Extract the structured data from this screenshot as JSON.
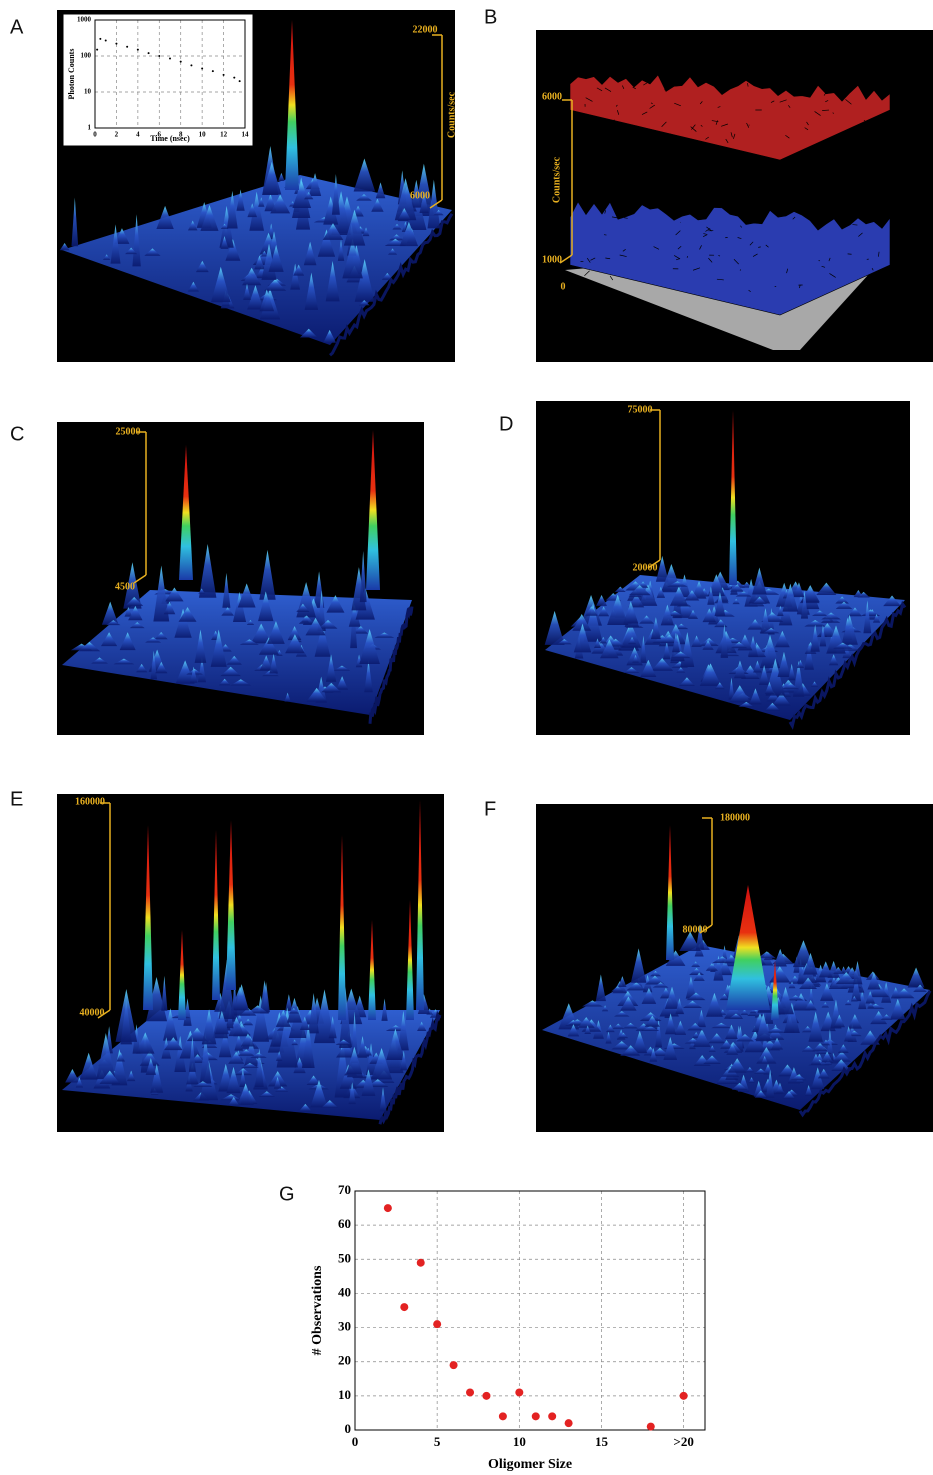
{
  "panels": {
    "A": {
      "label": "A",
      "scale": [
        "22000",
        "Counts/sec",
        "6000"
      ]
    },
    "B": {
      "label": "B",
      "scale": [
        "6000",
        "Counts/sec",
        "1000",
        "0"
      ]
    },
    "C": {
      "label": "C",
      "scale": [
        "25000",
        "4500"
      ]
    },
    "D": {
      "label": "D",
      "scale": [
        "75000",
        "20000"
      ]
    },
    "E": {
      "label": "E",
      "scale": [
        "160000",
        "40000"
      ]
    },
    "F": {
      "label": "F",
      "scale": [
        "180000",
        "80000"
      ]
    },
    "G": {
      "label": "G"
    }
  },
  "chart_data": [
    {
      "type": "scatter",
      "xlabel": "Time (nsec)",
      "ylabel": "Photon Counts",
      "x": [
        0.2,
        0.5,
        1,
        2,
        3,
        4,
        5,
        6,
        7,
        8,
        9,
        10,
        11,
        12,
        13,
        13.5
      ],
      "values": [
        150,
        300,
        270,
        220,
        180,
        150,
        120,
        100,
        85,
        70,
        55,
        45,
        38,
        30,
        25,
        20
      ],
      "color": "#000000",
      "yscale": "log",
      "grid": true,
      "xlim": [
        0,
        14
      ],
      "xticks": [
        0,
        2,
        4,
        6,
        8,
        10,
        12,
        14
      ],
      "ylim": [
        1,
        1000
      ],
      "yticks": [
        1,
        10,
        100,
        1000
      ]
    },
    {
      "type": "scatter",
      "xlabel": "Oligomer Size",
      "ylabel": "# Observations",
      "x": [
        2,
        3,
        4,
        5,
        6,
        7,
        8,
        9,
        10,
        11,
        12,
        13,
        18,
        20
      ],
      "values": [
        65,
        36,
        49,
        31,
        19,
        11,
        10,
        4,
        11,
        4,
        4,
        2,
        1,
        10
      ],
      "color": "#e32222",
      "yscale": "linear",
      "grid": true,
      "xlim": [
        0,
        21.3
      ],
      "xticks": [
        0,
        5,
        10,
        15,
        {
          "value": 20,
          "label": ">20"
        }
      ],
      "ylim": [
        0,
        70
      ],
      "yticks": [
        0,
        10,
        20,
        30,
        40,
        50,
        60,
        70
      ]
    }
  ]
}
